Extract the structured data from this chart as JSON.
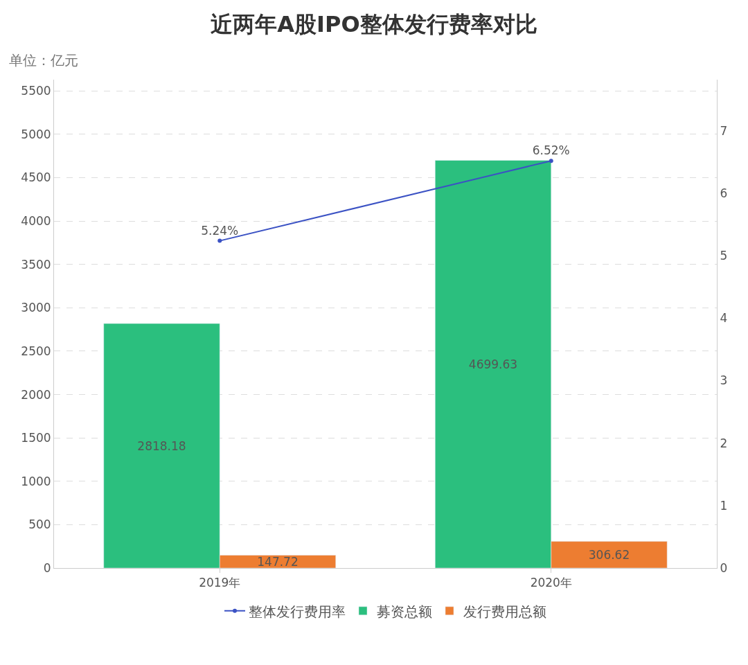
{
  "chart_data": {
    "type": "bar",
    "title": "近两年A股IPO整体发行费率对比",
    "ylabel": "单位：亿元",
    "categories": [
      "2019年",
      "2020年"
    ],
    "series": [
      {
        "name": "整体发行费用率",
        "type": "line",
        "axis": "y2",
        "color": "#3b52c4",
        "values": [
          5.24,
          6.52
        ],
        "value_labels": [
          "5.24%",
          "6.52%"
        ],
        "marker": "circle"
      },
      {
        "name": "募资总额",
        "color": "#2bbf7e",
        "values": [
          2818.18,
          4699.63
        ]
      },
      {
        "name": "发行费用总额",
        "color": "#ed7d31",
        "values": [
          147.72,
          306.62
        ]
      }
    ],
    "data_labels": true,
    "ylim": [
      0,
      5630
    ],
    "yticks": [
      0,
      500,
      1000,
      1500,
      2000,
      2500,
      3000,
      3500,
      4000,
      4500,
      5000,
      5500
    ],
    "y2lim": [
      0,
      7.82
    ],
    "y2ticks": [
      0,
      1,
      2,
      3,
      4,
      5,
      6,
      7
    ],
    "grid": "y",
    "legend": "bottom"
  }
}
